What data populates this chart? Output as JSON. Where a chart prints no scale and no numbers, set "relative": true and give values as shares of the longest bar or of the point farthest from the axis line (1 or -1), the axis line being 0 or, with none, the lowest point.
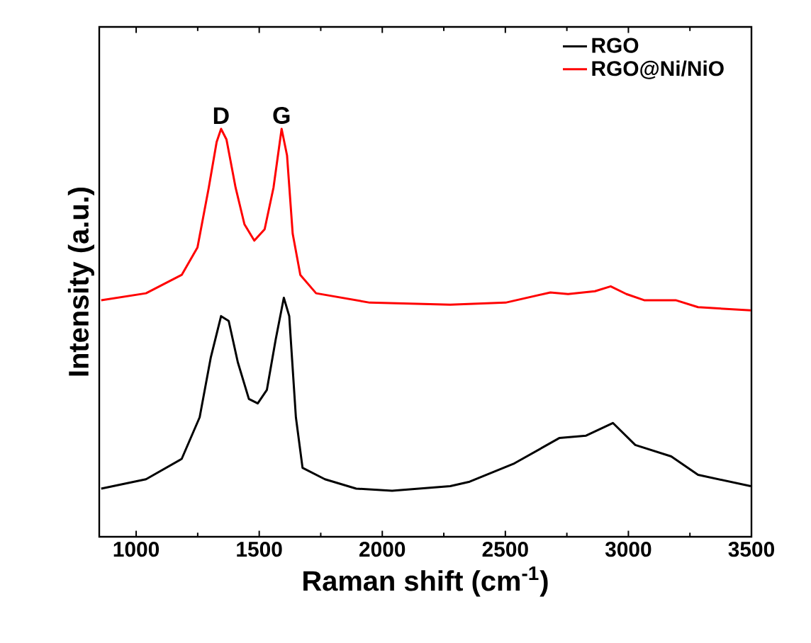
{
  "chart_data": {
    "type": "line",
    "relative": true,
    "xlabel": "Raman shift (cm$^{-1}$)",
    "ylabel": "Intensity (a.u.)",
    "xlim": [
      850,
      3500
    ],
    "xticks": [
      1000,
      1500,
      2000,
      2500,
      3000,
      3500
    ],
    "legend": "top right",
    "marker": "none",
    "line_style": "solid",
    "annotations": [
      {
        "text": "D",
        "x": 1345,
        "y": 1.0
      },
      {
        "text": "G",
        "x": 1591,
        "y": 1.0
      }
    ],
    "series": [
      {
        "name": "RGO",
        "color": "#000000",
        "x": [
          858,
          1040,
          1185,
          1258,
          1303,
          1345,
          1376,
          1413,
          1458,
          1494,
          1531,
          1567,
          1600,
          1622,
          1649,
          1676,
          1767,
          1894,
          2040,
          2276,
          2355,
          2537,
          2719,
          2828,
          2937,
          3028,
          3174,
          3283,
          3497
        ],
        "values": [
          0.118,
          0.141,
          0.191,
          0.293,
          0.439,
          0.541,
          0.529,
          0.428,
          0.338,
          0.327,
          0.36,
          0.484,
          0.586,
          0.541,
          0.293,
          0.169,
          0.141,
          0.118,
          0.113,
          0.124,
          0.135,
          0.18,
          0.242,
          0.248,
          0.279,
          0.225,
          0.197,
          0.152,
          0.124
        ]
      },
      {
        "name": "RGO@Ni/NiO",
        "color": "#ff0000",
        "x": [
          858,
          1040,
          1185,
          1249,
          1295,
          1327,
          1345,
          1367,
          1404,
          1440,
          1480,
          1522,
          1558,
          1591,
          1613,
          1636,
          1667,
          1731,
          1949,
          2276,
          2501,
          2683,
          2755,
          2864,
          2928,
          2992,
          3064,
          3192,
          3283,
          3497
        ],
        "values": [
          0.58,
          0.597,
          0.642,
          0.709,
          0.856,
          0.968,
          1.0,
          0.974,
          0.856,
          0.766,
          0.726,
          0.754,
          0.856,
          1.0,
          0.935,
          0.743,
          0.642,
          0.597,
          0.574,
          0.569,
          0.574,
          0.599,
          0.595,
          0.602,
          0.614,
          0.595,
          0.58,
          0.58,
          0.563,
          0.555
        ]
      }
    ]
  }
}
